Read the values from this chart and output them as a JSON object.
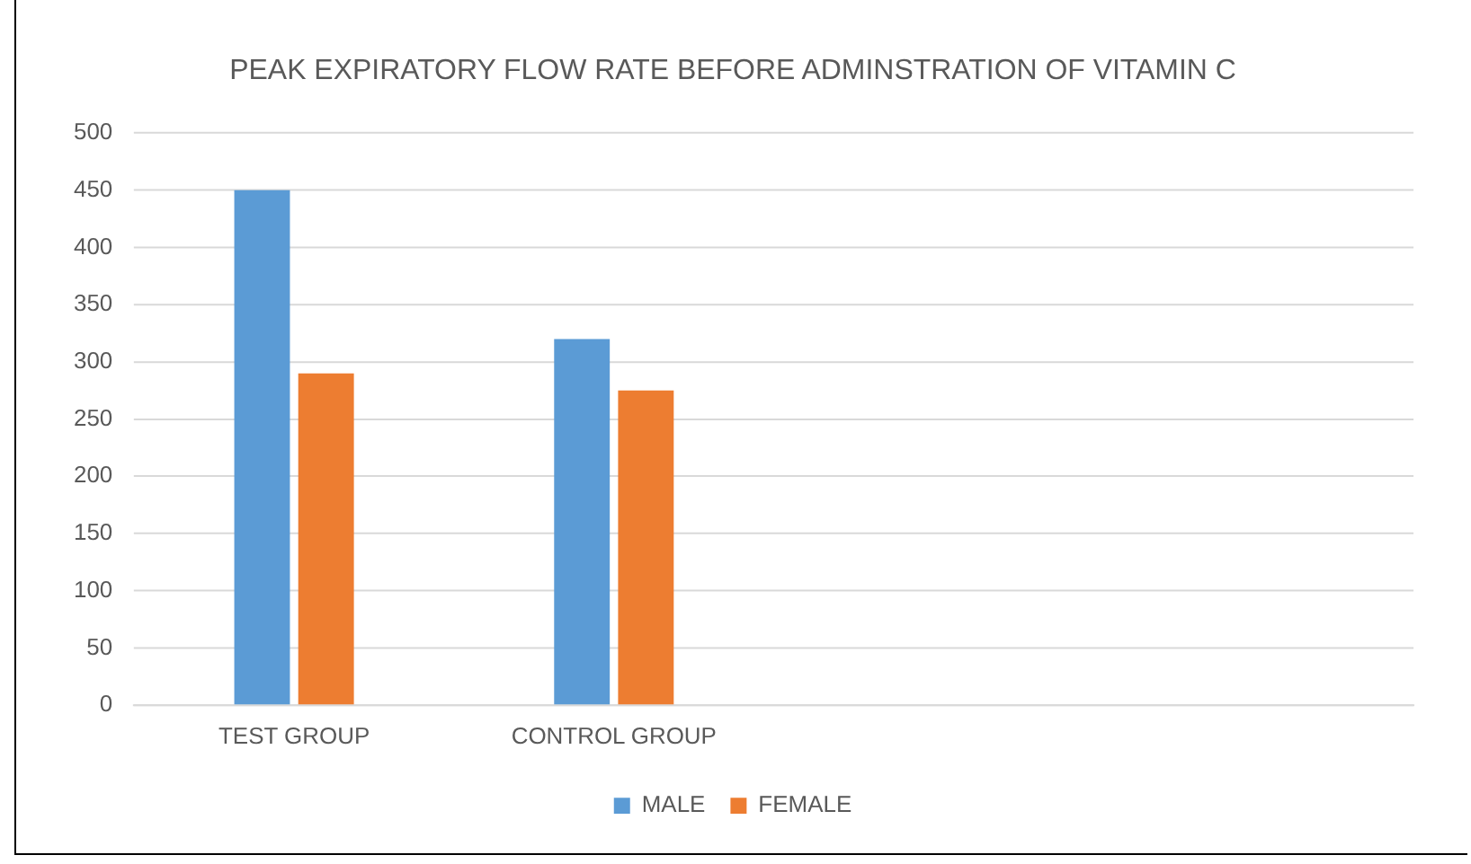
{
  "chart_data": {
    "type": "bar",
    "title": "PEAK EXPIRATORY FLOW RATE BEFORE ADMINSTRATION OF VITAMIN C",
    "categories": [
      "TEST GROUP",
      "CONTROL GROUP",
      null,
      null
    ],
    "series": [
      {
        "name": "MALE",
        "color": "#5b9bd5",
        "values": [
          450,
          320,
          null,
          null
        ]
      },
      {
        "name": "FEMALE",
        "color": "#ed7d31",
        "values": [
          290,
          275,
          null,
          null
        ]
      }
    ],
    "ylim": [
      0,
      500
    ],
    "yticks": [
      0,
      50,
      100,
      150,
      200,
      250,
      300,
      350,
      400,
      450,
      500
    ],
    "grid": "y",
    "legend": "bottom"
  }
}
